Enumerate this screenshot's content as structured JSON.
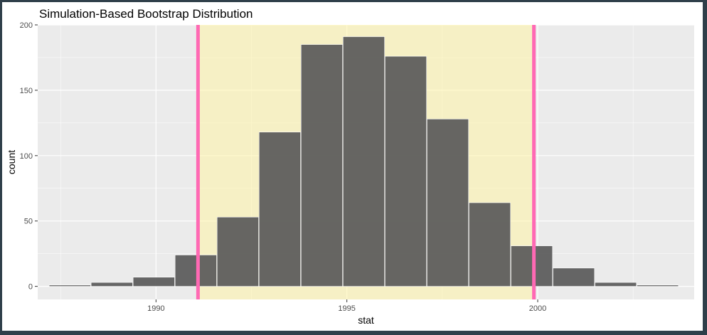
{
  "chart_data": {
    "type": "bar",
    "title": "Simulation-Based Bootstrap Distribution",
    "xlabel": "stat",
    "ylabel": "count",
    "xlim": [
      1986.9,
      2004.1
    ],
    "ylim": [
      -10,
      200
    ],
    "x_ticks": [
      1990,
      1995,
      2000
    ],
    "x_tick_labels": [
      "1990",
      "1995",
      "2000"
    ],
    "y_ticks": [
      0,
      50,
      100,
      150,
      200
    ],
    "y_tick_labels": [
      "0",
      "50",
      "100",
      "150",
      "200"
    ],
    "grid": true,
    "bin_width": 1.087,
    "bins": [
      {
        "start": 1987.2,
        "count": 1
      },
      {
        "start": 1988.3,
        "count": 3
      },
      {
        "start": 1989.4,
        "count": 7
      },
      {
        "start": 1990.5,
        "count": 24
      },
      {
        "start": 1991.6,
        "count": 53
      },
      {
        "start": 1992.7,
        "count": 118
      },
      {
        "start": 1993.8,
        "count": 185
      },
      {
        "start": 1994.9,
        "count": 191
      },
      {
        "start": 1996.0,
        "count": 176
      },
      {
        "start": 1997.1,
        "count": 128
      },
      {
        "start": 1998.2,
        "count": 64
      },
      {
        "start": 1999.3,
        "count": 31
      },
      {
        "start": 2000.4,
        "count": 14
      },
      {
        "start": 2001.5,
        "count": 3
      },
      {
        "start": 2002.6,
        "count": 1
      }
    ],
    "confidence_interval": {
      "lower": 1991.1,
      "upper": 1999.9
    },
    "colors": {
      "panel": "#ebebeb",
      "grid": "#ffffff",
      "bar_fill": "#595959",
      "bar_outline": "#ffffff",
      "shade": "#fff4a6",
      "ci_line": "#ff69b4"
    }
  }
}
